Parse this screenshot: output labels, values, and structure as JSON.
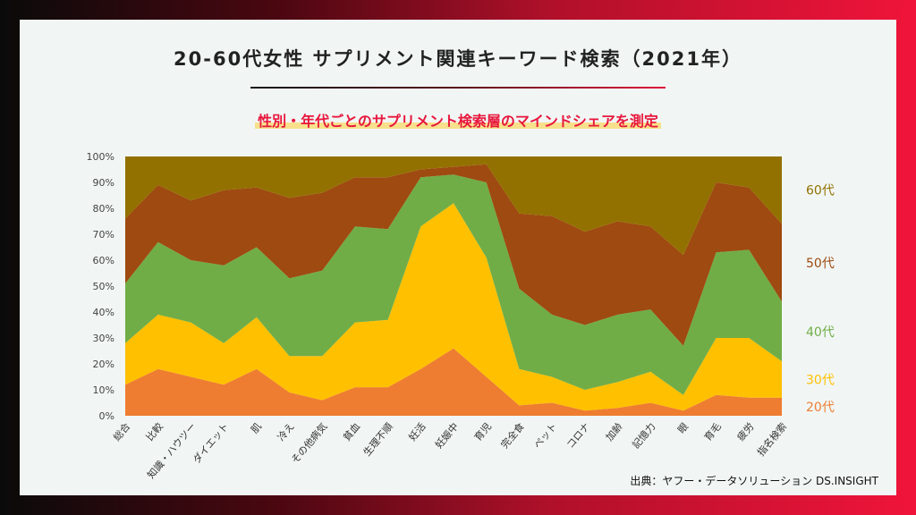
{
  "title": "20-60代女性 サプリメント関連キーワード検索（2021年）",
  "subtitle": "性別・年代ごとのサプリメント検索層のマインドシェアを測定",
  "source": "出典：ヤフー・データソリューション DS.INSIGHT",
  "chart_data": {
    "type": "area",
    "stacked": true,
    "categories": [
      "総合",
      "比較",
      "知識・ハウツー",
      "ダイエット",
      "肌",
      "冷え",
      "その他病気",
      "貧血",
      "生理不順",
      "妊活",
      "妊娠中",
      "育児",
      "完全食",
      "ペット",
      "コロナ",
      "加齢",
      "記憶力",
      "眼",
      "育毛",
      "疲労",
      "指名検索"
    ],
    "y_ticks": [
      "0%",
      "10%",
      "20%",
      "30%",
      "40%",
      "50%",
      "60%",
      "70%",
      "80%",
      "90%",
      "100%"
    ],
    "ylim": [
      0,
      100
    ],
    "series": [
      {
        "name": "20代",
        "color": "#ee7d31",
        "values": [
          12,
          18,
          15,
          12,
          18,
          9,
          6,
          11,
          11,
          18,
          26,
          15,
          4,
          5,
          2,
          3,
          5,
          2,
          8,
          7,
          7
        ]
      },
      {
        "name": "30代",
        "color": "#ffc000",
        "values": [
          16,
          21,
          21,
          16,
          20,
          14,
          17,
          25,
          26,
          55,
          56,
          46,
          14,
          10,
          8,
          10,
          12,
          6,
          22,
          23,
          14
        ]
      },
      {
        "name": "40代",
        "color": "#70ad47",
        "values": [
          23,
          28,
          24,
          30,
          27,
          30,
          33,
          37,
          35,
          19,
          11,
          29,
          31,
          24,
          25,
          26,
          24,
          19,
          33,
          34,
          23
        ]
      },
      {
        "name": "50代",
        "color": "#9e4a10",
        "values": [
          25,
          22,
          23,
          29,
          23,
          31,
          30,
          19,
          20,
          3,
          3,
          7,
          29,
          38,
          36,
          36,
          32,
          35,
          27,
          24,
          30
        ]
      },
      {
        "name": "60代",
        "color": "#937100",
        "values": [
          24,
          11,
          17,
          13,
          12,
          16,
          14,
          8,
          8,
          5,
          4,
          3,
          22,
          23,
          29,
          25,
          27,
          38,
          10,
          12,
          26
        ]
      }
    ]
  }
}
